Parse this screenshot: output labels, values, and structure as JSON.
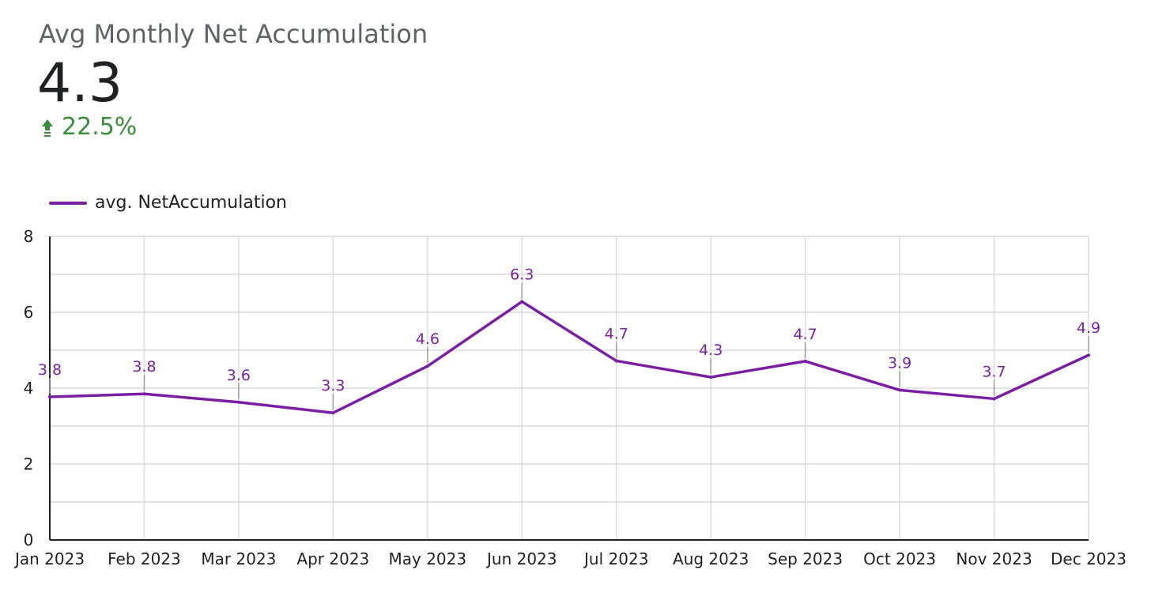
{
  "scorecard": {
    "title": "Avg Monthly Net Accumulation",
    "value": "4.3",
    "delta": "22.5%",
    "delta_color": "#388e3c",
    "delta_icon": "arrow-up-icon"
  },
  "legend": {
    "label": "avg. NetAccumulation"
  },
  "colors": {
    "series": "#7b1fa2",
    "grid": "#dadce0",
    "axis": "#202124",
    "tick_text": "#202124"
  },
  "chart_data": {
    "type": "line",
    "categories": [
      "Jan 2023",
      "Feb 2023",
      "Mar 2023",
      "Apr 2023",
      "May 2023",
      "Jun 2023",
      "Jul 2023",
      "Aug 2023",
      "Sep 2023",
      "Oct 2023",
      "Nov 2023",
      "Dec 2023"
    ],
    "series": [
      {
        "name": "avg. NetAccumulation",
        "values": [
          3.77,
          3.85,
          3.63,
          3.35,
          4.58,
          6.28,
          4.72,
          4.29,
          4.71,
          3.95,
          3.72,
          4.87
        ],
        "labels": [
          "3.8",
          "3.8",
          "3.6",
          "3.3",
          "4.6",
          "6.3",
          "4.7",
          "4.3",
          "4.7",
          "3.9",
          "3.7",
          "4.9"
        ]
      }
    ],
    "ylim": [
      0,
      8
    ],
    "yticks": [
      "0",
      "2",
      "4",
      "6",
      "8"
    ],
    "grid": true,
    "legend_position": "top-left"
  }
}
